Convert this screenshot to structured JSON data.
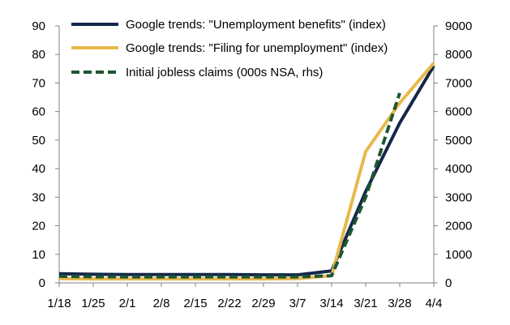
{
  "chart_data": {
    "type": "line",
    "title": "",
    "categories": [
      "1/18",
      "1/25",
      "2/1",
      "2/8",
      "2/15",
      "2/22",
      "2/29",
      "3/7",
      "3/14",
      "3/21",
      "3/28",
      "4/4"
    ],
    "y_left": {
      "ylim": [
        0,
        90
      ],
      "ticks": [
        "0",
        "10",
        "20",
        "30",
        "40",
        "50",
        "60",
        "70",
        "80",
        "90"
      ]
    },
    "y_right": {
      "ylim": [
        0,
        9000
      ],
      "ticks": [
        "0",
        "1000",
        "2000",
        "3000",
        "4000",
        "5000",
        "6000",
        "7000",
        "8000",
        "9000"
      ]
    },
    "grid": false,
    "legend_position": "top-left",
    "series": [
      {
        "name": "Google trends: \"Unemployment benefits\" (index)",
        "axis": "left",
        "color": "#14284B",
        "style": "solid",
        "values": [
          3.2,
          3.0,
          2.9,
          2.9,
          2.9,
          2.9,
          2.8,
          2.8,
          4.2,
          32.0,
          56.0,
          76.0
        ]
      },
      {
        "name": "Google trends: \"Filing for unemployment\" (index)",
        "axis": "left",
        "color": "#E8B84B",
        "style": "solid",
        "values": [
          1.5,
          1.4,
          1.4,
          1.4,
          1.4,
          1.4,
          1.4,
          1.5,
          2.5,
          46.0,
          63.0,
          77.0
        ]
      },
      {
        "name": "Initial jobless claims (000s NSA, rhs)",
        "axis": "right",
        "color": "#1E5631",
        "style": "dashed",
        "values": [
          230,
          215,
          210,
          210,
          210,
          210,
          210,
          210,
          250,
          3000,
          6650,
          null
        ]
      }
    ]
  }
}
